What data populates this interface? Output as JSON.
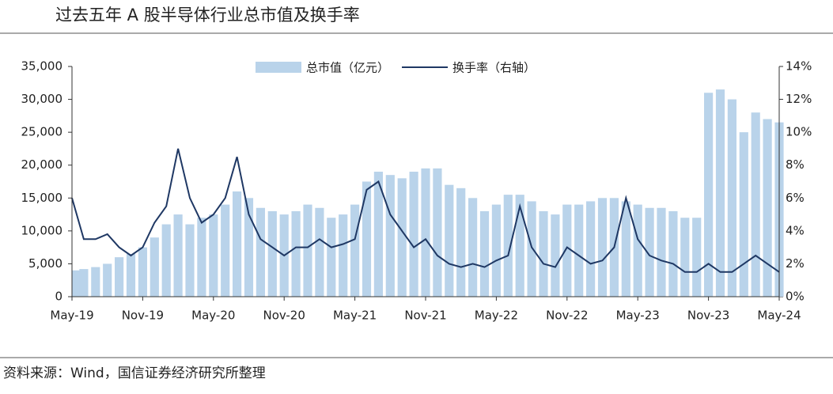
{
  "chart_data": {
    "type": "bar_line",
    "title": "过去五年 A 股半导体行业总市值及换手率",
    "source": "资料来源：Wind，国信证券经济研究所整理",
    "categories": [
      "May-19",
      null,
      null,
      null,
      null,
      null,
      "Nov-19",
      null,
      null,
      null,
      null,
      null,
      "May-20",
      null,
      null,
      null,
      null,
      null,
      "Nov-20",
      null,
      null,
      null,
      null,
      null,
      "May-21",
      null,
      null,
      null,
      null,
      null,
      "Nov-21",
      null,
      null,
      null,
      null,
      null,
      "May-22",
      null,
      null,
      null,
      null,
      null,
      "Nov-22",
      null,
      null,
      null,
      null,
      null,
      "May-23",
      null,
      null,
      null,
      null,
      null,
      "Nov-23",
      null,
      null,
      null,
      null,
      null,
      "May-24"
    ],
    "series": [
      {
        "name": "总市值（亿元）",
        "kind": "bar",
        "color": "#b9d3ea",
        "values": [
          4000,
          4200,
          4500,
          5000,
          6000,
          6500,
          7500,
          9000,
          11000,
          12500,
          11000,
          12000,
          12500,
          14000,
          16000,
          15000,
          13500,
          13000,
          12500,
          13000,
          14000,
          13500,
          12000,
          12500,
          14000,
          17500,
          19000,
          18500,
          18000,
          19000,
          19500,
          19500,
          17000,
          16500,
          15000,
          13000,
          14000,
          15500,
          15500,
          14500,
          13000,
          12500,
          14000,
          14000,
          14500,
          15000,
          15000,
          14500,
          14000,
          13500,
          13500,
          13000,
          12000,
          12000,
          31000,
          31500,
          30000,
          25000,
          28000,
          27000,
          26500
        ]
      },
      {
        "name": "换手率（右轴）",
        "kind": "line",
        "axis": "y2",
        "color": "#1f3864",
        "values": [
          6,
          3.5,
          3.5,
          3.8,
          3,
          2.5,
          3,
          4.5,
          5.5,
          9,
          6,
          4.5,
          5,
          6,
          8.5,
          5,
          3.5,
          3,
          2.5,
          3,
          3,
          3.5,
          3,
          3.2,
          3.5,
          6.5,
          7,
          5,
          4,
          3,
          3.5,
          2.5,
          2,
          1.8,
          2,
          1.8,
          2.2,
          2.5,
          5.5,
          3,
          2,
          1.8,
          3,
          2.5,
          2,
          2.2,
          3,
          6,
          3.5,
          2.5,
          2.2,
          2,
          1.5,
          1.5,
          2,
          1.5,
          1.5,
          2,
          2.5,
          2,
          1.5
        ]
      }
    ],
    "ylim": [
      0,
      35000
    ],
    "yticks": [
      0,
      {
        "value": 5000,
        "label": "5,000"
      },
      {
        "value": 10000,
        "label": "10,000"
      },
      {
        "value": 15000,
        "label": "15,000"
      },
      {
        "value": 20000,
        "label": "20,000"
      },
      {
        "value": 25000,
        "label": "25,000"
      },
      {
        "value": 30000,
        "label": "30,000"
      },
      {
        "value": 35000,
        "label": "35,000"
      }
    ],
    "y2lim": [
      0,
      14
    ],
    "y2ticks": [
      {
        "value": 0,
        "label": "0%"
      },
      {
        "value": 2,
        "label": "2%"
      },
      {
        "value": 4,
        "label": "4%"
      },
      {
        "value": 6,
        "label": "6%"
      },
      {
        "value": 8,
        "label": "8%"
      },
      {
        "value": 10,
        "label": "10%"
      },
      {
        "value": 12,
        "label": "12%"
      },
      {
        "value": 14,
        "label": "14%"
      }
    ]
  }
}
